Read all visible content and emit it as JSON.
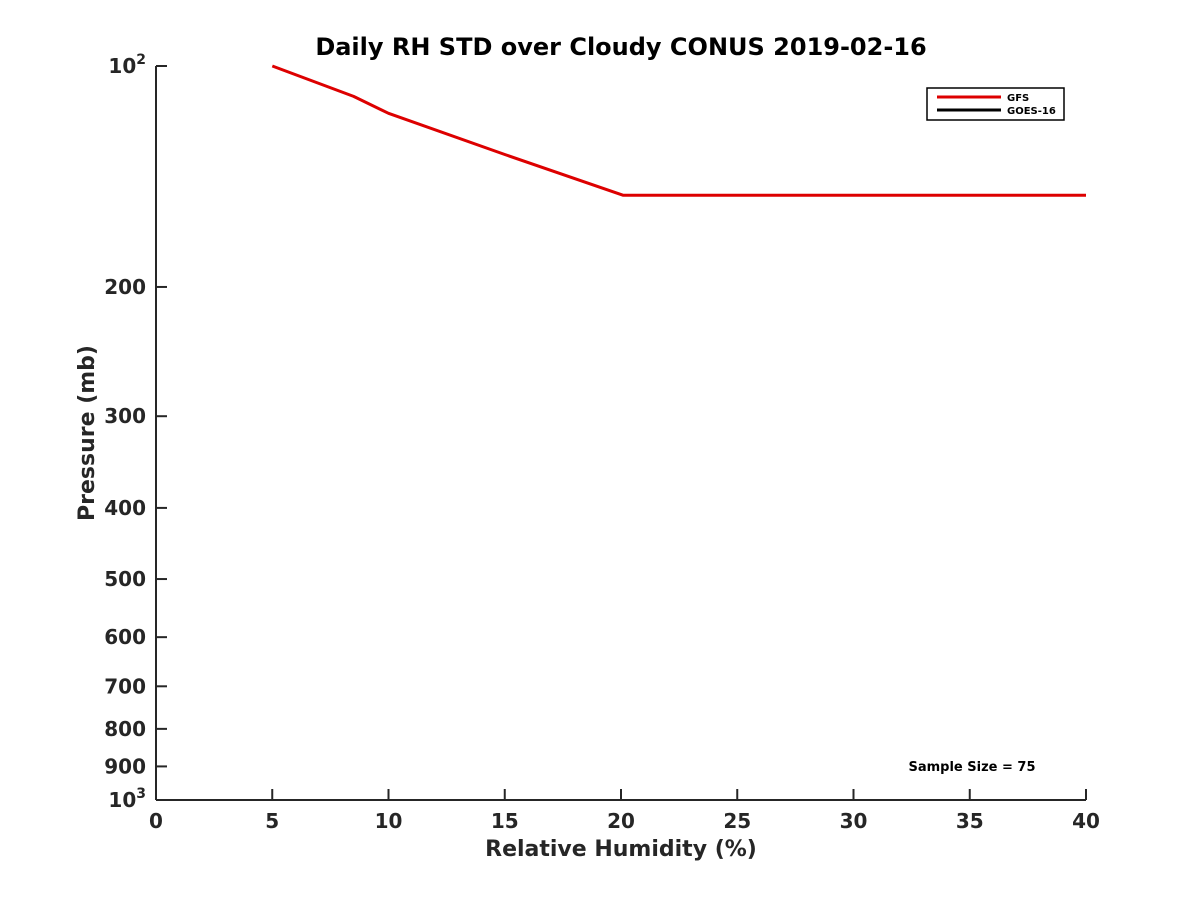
{
  "chart_data": {
    "type": "line",
    "title": "Daily RH STD over Cloudy CONUS 2019-02-16",
    "xlabel": "Relative Humidity (%)",
    "ylabel": "Pressure (mb)",
    "xlim": [
      0,
      40
    ],
    "ylim": [
      100,
      1000
    ],
    "yscale": "log",
    "y_reversed": true,
    "grid": false,
    "legend_position": "top-right",
    "x_ticks": [
      "0",
      "5",
      "10",
      "15",
      "20",
      "25",
      "30",
      "35",
      "40"
    ],
    "y_ticks": [
      {
        "value": 100,
        "base": "10",
        "exp": "2"
      },
      {
        "value": 200,
        "label": "200"
      },
      {
        "value": 300,
        "label": "300"
      },
      {
        "value": 400,
        "label": "400"
      },
      {
        "value": 500,
        "label": "500"
      },
      {
        "value": 600,
        "label": "600"
      },
      {
        "value": 700,
        "label": "700"
      },
      {
        "value": 800,
        "label": "800"
      },
      {
        "value": 900,
        "label": "900"
      },
      {
        "value": 1000,
        "base": "10",
        "exp": "3"
      }
    ],
    "series": [
      {
        "name": "GFS",
        "color": "#dd0000",
        "points": [
          {
            "x": 5,
            "y": 100
          },
          {
            "x": 8.5,
            "y": 110
          },
          {
            "x": 10,
            "y": 116
          },
          {
            "x": 15,
            "y": 132
          },
          {
            "x": 20.1,
            "y": 150
          },
          {
            "x": 40,
            "y": 150
          }
        ]
      },
      {
        "name": "GOES-16",
        "color": "#000000",
        "points": []
      }
    ],
    "annotations": [
      {
        "text": "Sample Size = 75"
      }
    ]
  }
}
